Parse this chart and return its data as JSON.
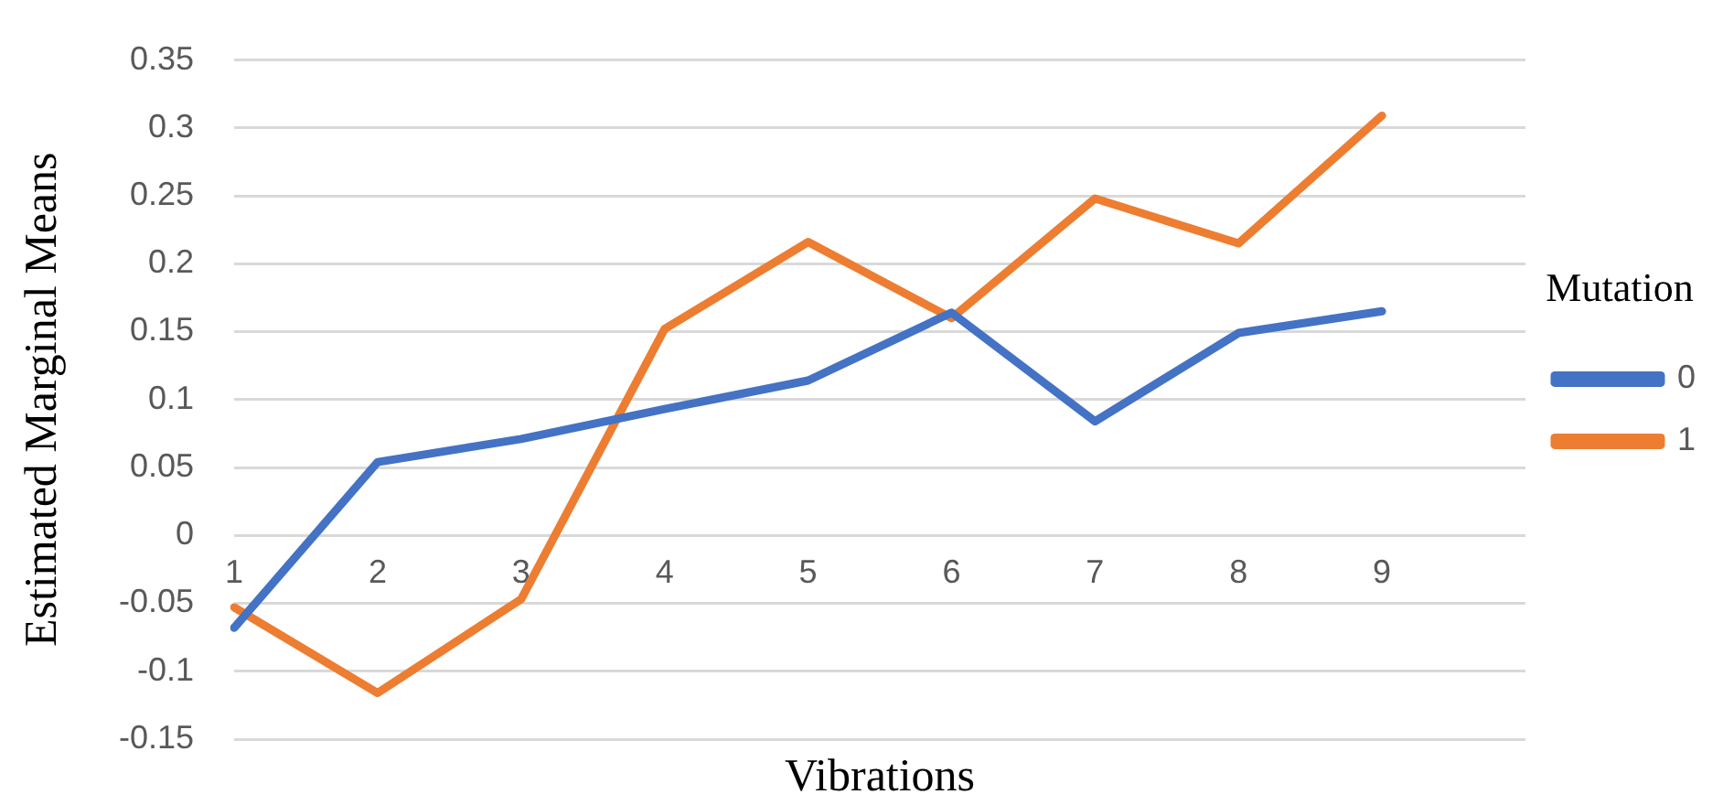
{
  "chart_data": {
    "type": "line",
    "xlabel": "Vibrations",
    "ylabel": "Estimated Marginal Means",
    "legend_title": "Mutation",
    "categories": [
      "1",
      "2",
      "3",
      "4",
      "5",
      "6",
      "7",
      "8",
      "9",
      null
    ],
    "series": [
      {
        "name": "0",
        "color": "#4472c4",
        "values": [
          -0.068,
          0.054,
          0.071,
          0.093,
          0.114,
          0.164,
          0.084,
          0.149,
          0.165,
          null
        ]
      },
      {
        "name": "1",
        "color": "#ed7d31",
        "values": [
          -0.053,
          -0.116,
          -0.047,
          0.152,
          0.216,
          0.16,
          0.248,
          0.215,
          0.309,
          null
        ]
      }
    ],
    "ylim": [
      -0.15,
      0.35
    ],
    "yticks": [
      -0.15,
      -0.1,
      -0.05,
      0,
      0.05,
      0.1,
      0.15,
      0.2,
      0.25,
      0.3,
      0.35
    ],
    "grid": "y",
    "legend": "right"
  }
}
